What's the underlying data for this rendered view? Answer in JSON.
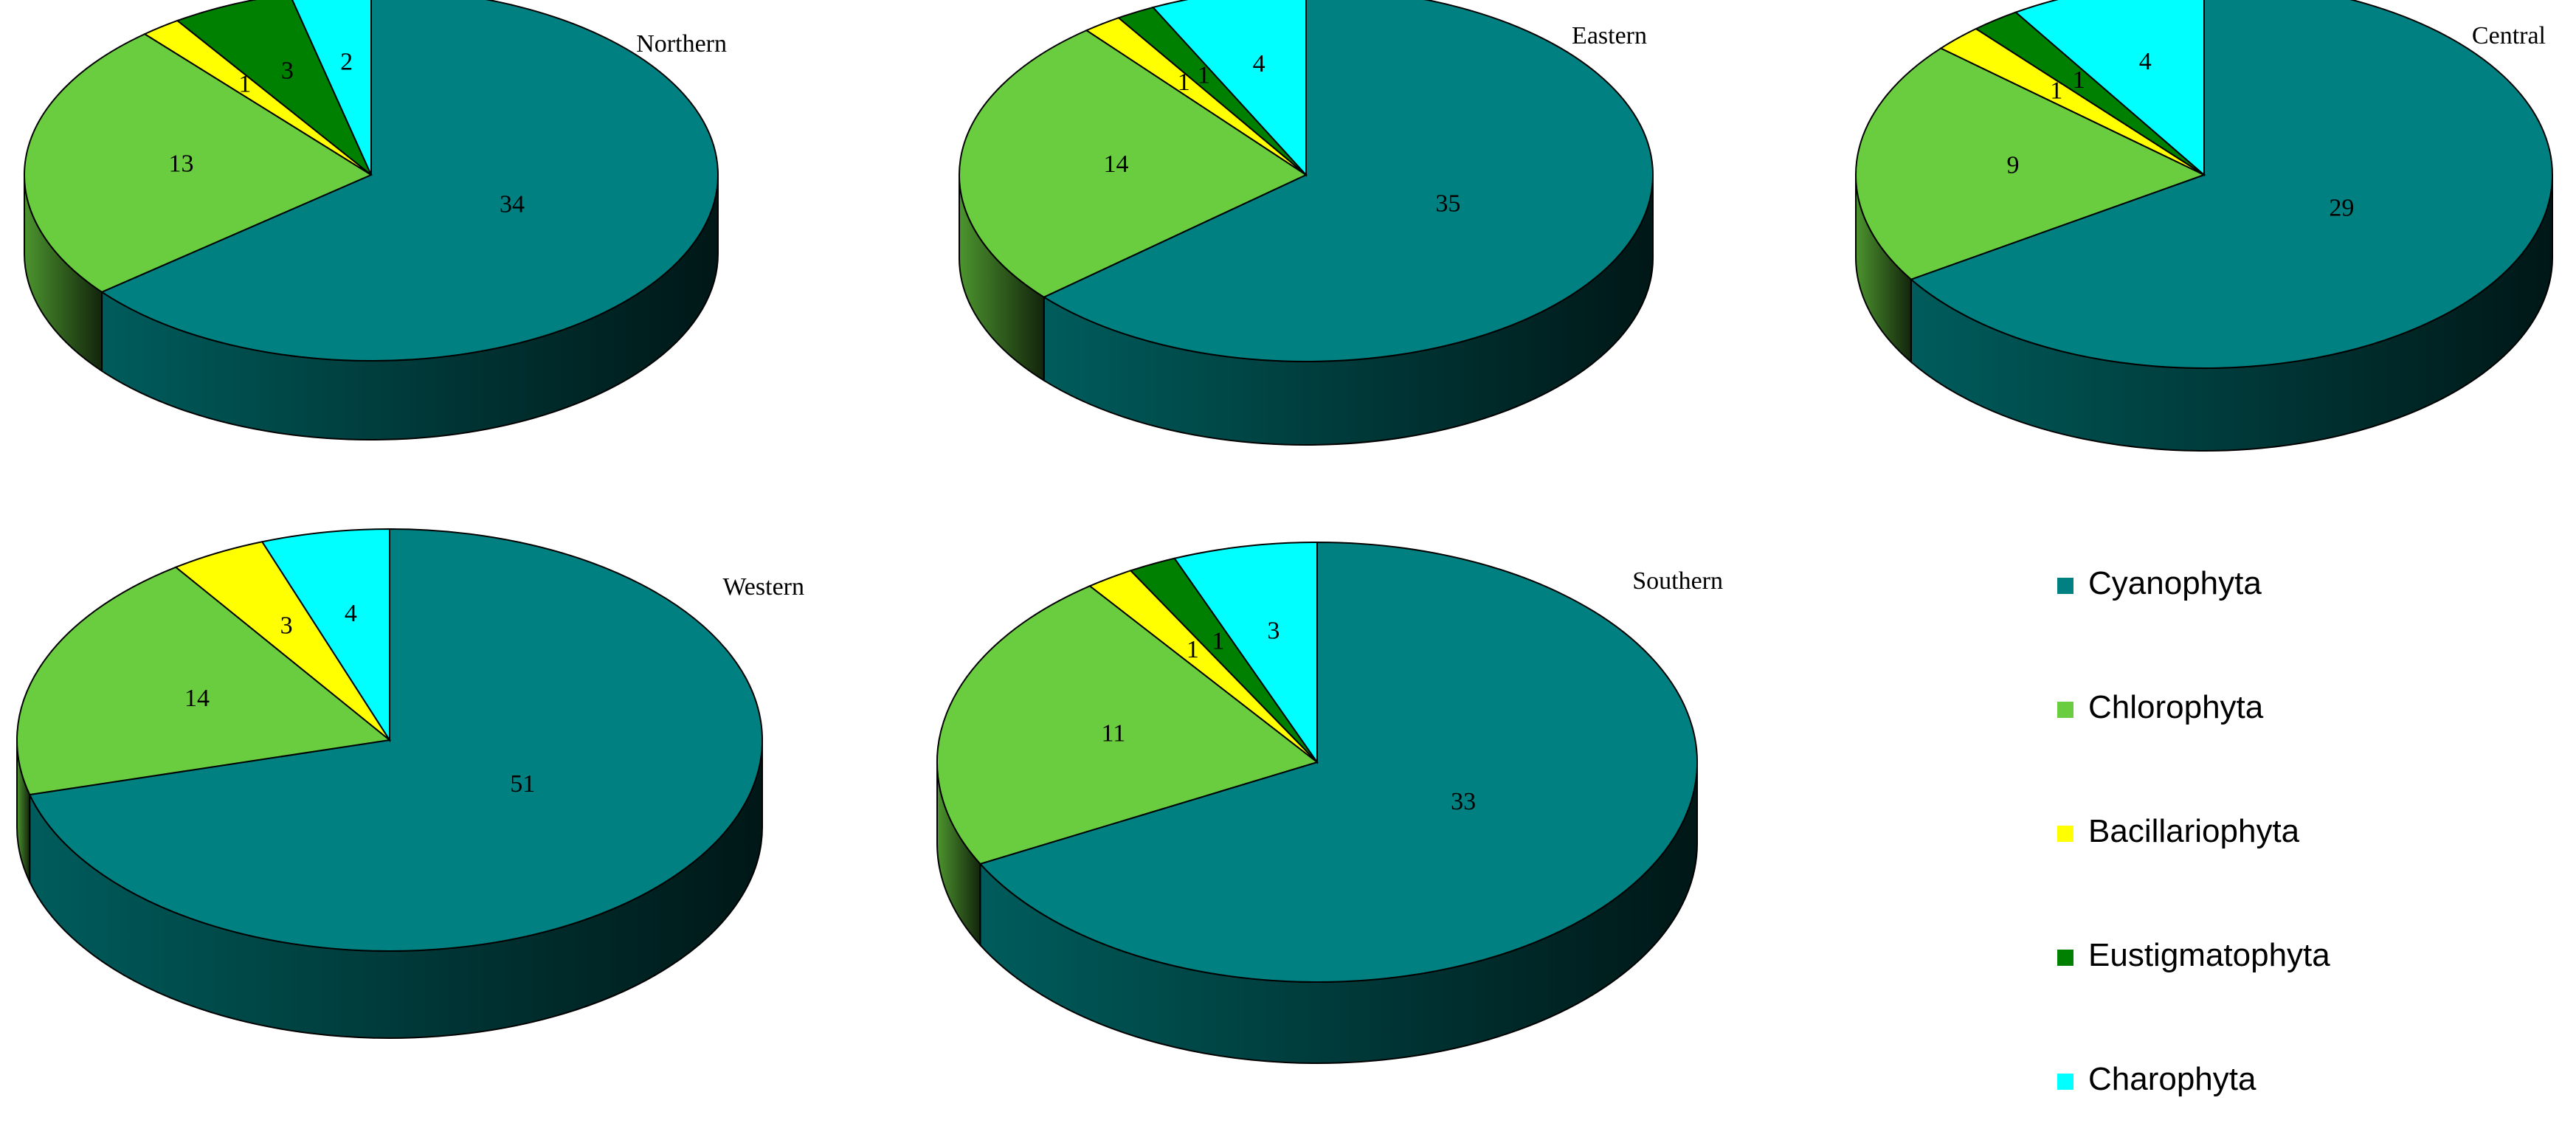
{
  "colors": {
    "Cyanophyta": "#008080",
    "Chlorophyta": "#6ACD40",
    "Bacillariophyta": "#FFFF00",
    "Eustigmatophyta": "#008000",
    "Charophyta": "#00FFFF"
  },
  "legend": {
    "placement": "right",
    "items": [
      "Cyanophyta",
      "Chlorophyta",
      "Bacillariophyta",
      "Eustigmatophyta",
      "Charophyta"
    ]
  },
  "chart_data": [
    {
      "type": "pie",
      "title": "Northern",
      "categories": [
        "Cyanophyta",
        "Chlorophyta",
        "Bacillariophyta",
        "Eustigmatophyta",
        "Charophyta"
      ],
      "values": [
        34,
        13,
        1,
        3,
        2
      ]
    },
    {
      "type": "pie",
      "title": "Eastern",
      "categories": [
        "Cyanophyta",
        "Chlorophyta",
        "Bacillariophyta",
        "Eustigmatophyta",
        "Charophyta"
      ],
      "values": [
        35,
        14,
        1,
        1,
        4
      ]
    },
    {
      "type": "pie",
      "title": "Central",
      "categories": [
        "Cyanophyta",
        "Chlorophyta",
        "Bacillariophyta",
        "Eustigmatophyta",
        "Charophyta"
      ],
      "values": [
        29,
        9,
        1,
        1,
        4
      ]
    },
    {
      "type": "pie",
      "title": "Western",
      "categories": [
        "Cyanophyta",
        "Chlorophyta",
        "Bacillariophyta",
        "Eustigmatophyta",
        "Charophyta"
      ],
      "values": [
        51,
        14,
        3,
        0,
        4
      ]
    },
    {
      "type": "pie",
      "title": "Southern",
      "categories": [
        "Cyanophyta",
        "Chlorophyta",
        "Bacillariophyta",
        "Eustigmatophyta",
        "Charophyta"
      ],
      "values": [
        33,
        11,
        1,
        1,
        3
      ]
    }
  ]
}
